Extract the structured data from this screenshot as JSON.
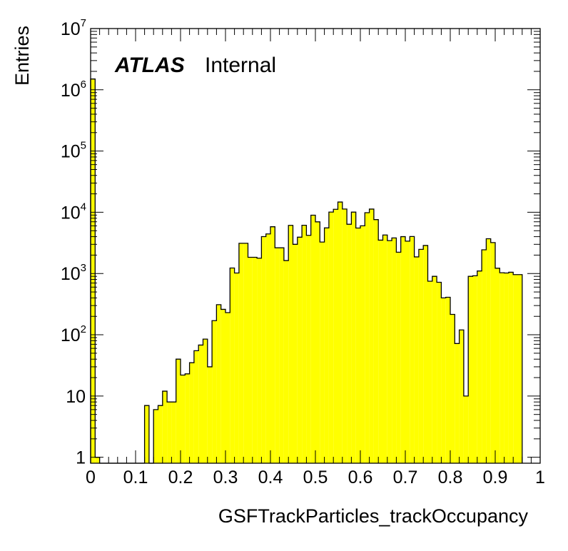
{
  "chart_data": {
    "type": "histogram",
    "xlabel": "GSFTrackParticles_trackOccupancy",
    "ylabel": "Entries",
    "xlim": [
      0,
      1
    ],
    "ylim": [
      0.8,
      10000000
    ],
    "yscale": "log",
    "fill_color": "#ffff00",
    "line_color": "#000000",
    "bin_width": 0.01,
    "annotation": {
      "atlas": "ATLAS",
      "label": "Internal"
    },
    "x_ticks": [
      "0",
      "0.1",
      "0.2",
      "0.3",
      "0.4",
      "0.5",
      "0.6",
      "0.7",
      "0.8",
      "0.9",
      "1"
    ],
    "y_ticks": [
      {
        "base": "1",
        "exp": ""
      },
      {
        "base": "10",
        "exp": ""
      },
      {
        "base": "10",
        "exp": "2"
      },
      {
        "base": "10",
        "exp": "3"
      },
      {
        "base": "10",
        "exp": "4"
      },
      {
        "base": "10",
        "exp": "5"
      },
      {
        "base": "10",
        "exp": "6"
      },
      {
        "base": "10",
        "exp": "7"
      }
    ],
    "bin_edges_start": 0.0,
    "values": [
      1500000,
      1,
      0,
      0,
      0,
      0,
      0,
      0,
      0,
      0,
      0,
      0,
      7,
      0,
      6,
      7,
      12,
      8,
      8,
      40,
      22,
      23,
      35,
      55,
      68,
      85,
      30,
      170,
      310,
      260,
      230,
      1230,
      1020,
      3120,
      3120,
      1840,
      1840,
      1780,
      4010,
      4430,
      5810,
      2630,
      2630,
      1630,
      6120,
      3000,
      3920,
      6140,
      4200,
      8960,
      6980,
      3270,
      5560,
      10090,
      11190,
      14710,
      11300,
      6380,
      10070,
      5530,
      6020,
      9840,
      11280,
      7600,
      3510,
      4260,
      3450,
      3810,
      2230,
      4000,
      3380,
      4020,
      1870,
      2480,
      2870,
      750,
      900,
      720,
      400,
      410,
      215,
      72,
      120,
      10,
      900,
      920,
      1100,
      2440,
      3700,
      3200,
      1220,
      1030,
      1020,
      1050,
      960,
      960
    ],
    "values_note": "",
    "series": []
  }
}
